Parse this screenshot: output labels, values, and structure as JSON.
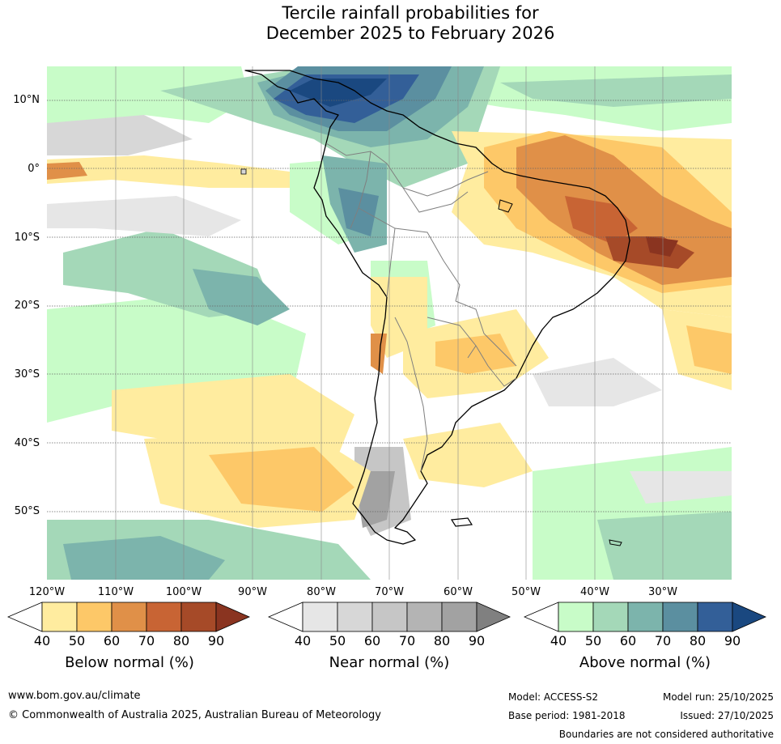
{
  "title": {
    "line1": "Tercile rainfall probabilities for",
    "line2": "December 2025 to February 2026"
  },
  "map": {
    "lat_labels": [
      "10°N",
      "0°",
      "10°S",
      "20°S",
      "30°S",
      "40°S",
      "50°S"
    ],
    "lon_labels": [
      "120°W",
      "110°W",
      "100°W",
      "90°W",
      "80°W",
      "70°W",
      "60°W",
      "50°W",
      "40°W",
      "30°W"
    ],
    "extent": {
      "lon_min": -120,
      "lon_max": -20,
      "lat_min": -60,
      "lat_max": 15
    }
  },
  "legend": {
    "below": {
      "title": "Below normal (%)",
      "ticks": [
        "40",
        "50",
        "60",
        "70",
        "80",
        "90"
      ],
      "colors": [
        "#ffffff",
        "#ffec9f",
        "#fdc868",
        "#e09048",
        "#c86434",
        "#a64a28",
        "#8a3420"
      ]
    },
    "near": {
      "title": "Near normal (%)",
      "ticks": [
        "40",
        "50",
        "60",
        "70",
        "80",
        "90"
      ],
      "colors": [
        "#ffffff",
        "#e6e6e6",
        "#d7d7d7",
        "#c6c6c6",
        "#b4b4b4",
        "#a2a2a2",
        "#808080"
      ]
    },
    "above": {
      "title": "Above normal (%)",
      "ticks": [
        "40",
        "50",
        "60",
        "70",
        "80",
        "90"
      ],
      "colors": [
        "#ffffff",
        "#c8fcc8",
        "#a4d8b8",
        "#7cb4ac",
        "#5b8fa0",
        "#335f98",
        "#1a4880"
      ]
    }
  },
  "footer": {
    "url": "www.bom.gov.au/climate",
    "copyright": "© Commonwealth of Australia 2025, Australian Bureau of Meteorology",
    "model": "Model: ACCESS-S2",
    "model_run": "Model run: 25/10/2025",
    "base_period": "Base period: 1981-2018",
    "issued": "Issued: 27/10/2025",
    "disclaimer": "Boundaries are not considered authoritative"
  }
}
